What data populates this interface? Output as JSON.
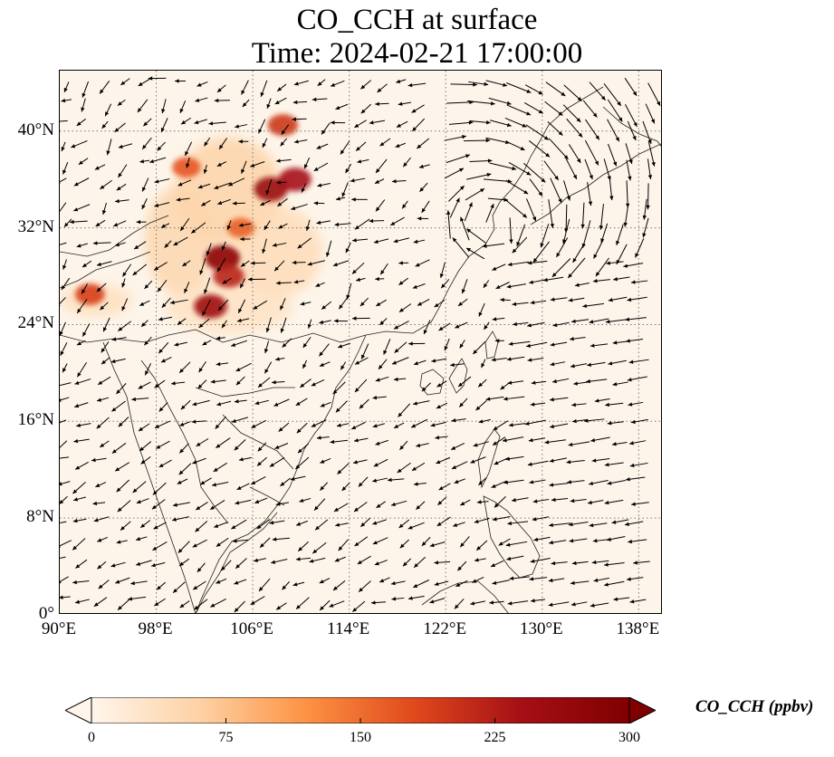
{
  "title": "CO_CCH at surface",
  "subtitle": "Time: 2024-02-21 17:00:00",
  "map": {
    "lon_range": [
      90,
      140
    ],
    "lat_range": [
      0,
      45
    ],
    "lon_ticks": [
      "90°E",
      "98°E",
      "106°E",
      "114°E",
      "122°E",
      "130°E",
      "138°E"
    ],
    "lat_ticks": [
      "0°",
      "8°N",
      "16°N",
      "24°N",
      "32°N",
      "40°N"
    ],
    "lon_tick_values": [
      90,
      98,
      106,
      114,
      122,
      130,
      138
    ],
    "lat_tick_values": [
      0,
      8,
      16,
      24,
      32,
      40
    ],
    "gridlines": "dotted",
    "overlay": "wind vectors (arrows)",
    "background_color": "#fdf5ea"
  },
  "colorbar": {
    "label": "CO_CCH (ppbv)",
    "ticks": [
      "0",
      "75",
      "150",
      "225",
      "300"
    ],
    "tick_values": [
      0,
      75,
      150,
      225,
      300
    ],
    "colormap": [
      "#fff5eb",
      "#fdd2a5",
      "#fd9243",
      "#e0491c",
      "#a50f15",
      "#7f0000"
    ],
    "extend": "both"
  },
  "chart_data": {
    "type": "heatmap",
    "title": "CO_CCH at surface",
    "subtitle": "Time: 2024-02-21 17:00:00",
    "xlim": [
      90,
      140
    ],
    "ylim": [
      0,
      45
    ],
    "colorbar_range": [
      0,
      300
    ],
    "high_regions": [
      {
        "lon": 103.5,
        "lat": 29.5,
        "value": 280
      },
      {
        "lon": 107.5,
        "lat": 35.2,
        "value": 260
      },
      {
        "lon": 109.5,
        "lat": 36.0,
        "value": 240
      },
      {
        "lon": 102.5,
        "lat": 25.5,
        "value": 250
      },
      {
        "lon": 104.0,
        "lat": 28.0,
        "value": 220
      },
      {
        "lon": 100.5,
        "lat": 37.0,
        "value": 170
      },
      {
        "lon": 108.5,
        "lat": 40.5,
        "value": 200
      },
      {
        "lon": 92.5,
        "lat": 26.5,
        "value": 190
      },
      {
        "lon": 105.0,
        "lat": 32.0,
        "value": 160
      }
    ]
  }
}
